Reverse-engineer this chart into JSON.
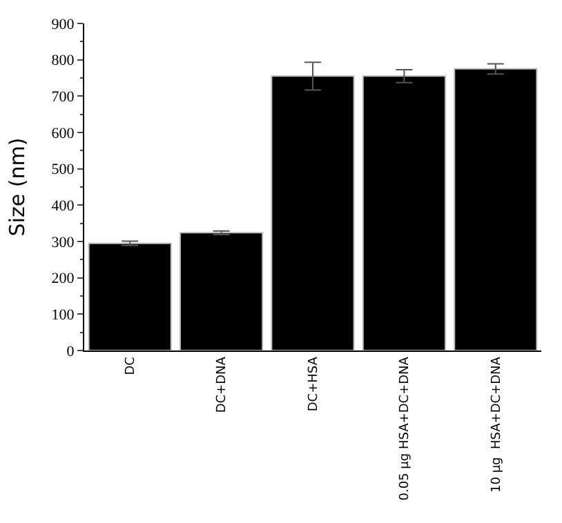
{
  "chart_data": {
    "type": "bar",
    "ylabel": "Size (nm)",
    "categories": [
      "DC",
      "DC+DNA",
      "DC+HSA",
      "0.05 µg HSA+DC+DNA",
      "10 µg  HSA+DC+DNA"
    ],
    "values": [
      295,
      324,
      755,
      755,
      775
    ],
    "errors": [
      6,
      5,
      38,
      18,
      14
    ],
    "color": "#000000",
    "ylim": [
      0,
      900
    ],
    "yticks": [
      0,
      100,
      200,
      300,
      400,
      500,
      600,
      700,
      800,
      900
    ]
  }
}
